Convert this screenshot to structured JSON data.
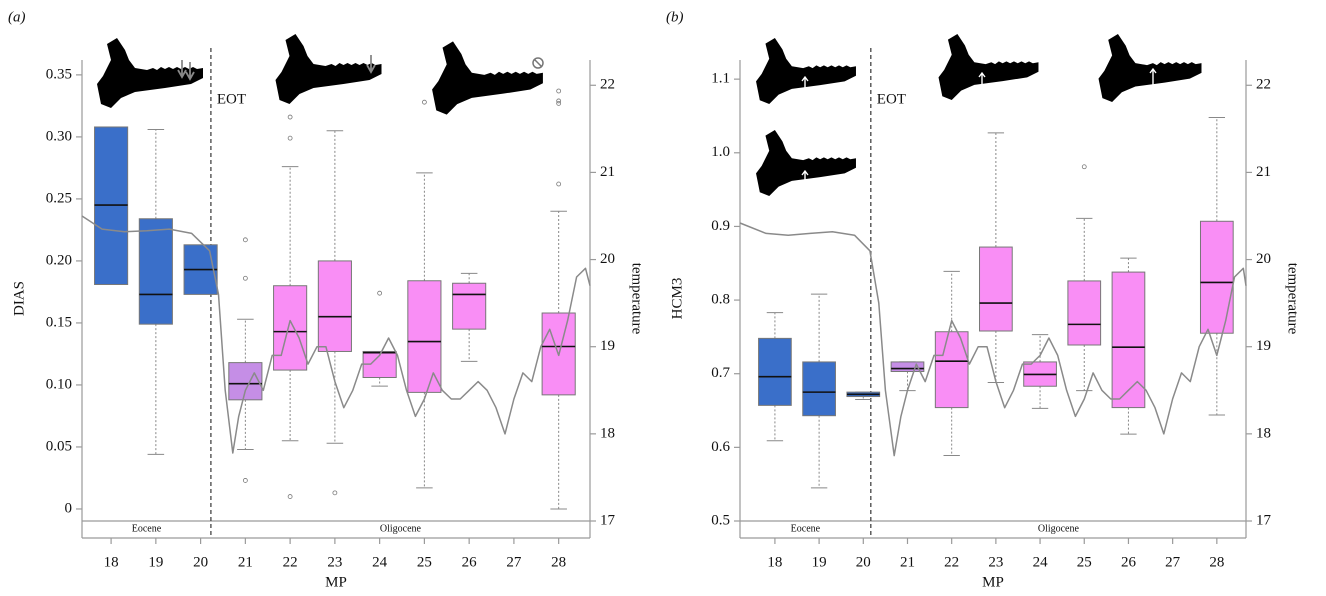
{
  "chart_data": [
    {
      "type": "box",
      "panel_label": "(a)",
      "y_label": "DIAS",
      "y2_label": "temperature",
      "x_label": "MP",
      "eot": {
        "label": "EOT",
        "x": 20.23
      },
      "epochs": [
        "Eocene",
        "Oligocene"
      ],
      "x": [
        18,
        19,
        20,
        21,
        22,
        23,
        24,
        25,
        26,
        27,
        28
      ],
      "xlim": [
        17.35,
        28.7
      ],
      "xticks": [
        18,
        19,
        20,
        21,
        22,
        23,
        24,
        25,
        26,
        27,
        28
      ],
      "ylim": [
        -0.0097,
        0.362
      ],
      "yticks": [
        0,
        0.05,
        {
          "value": 0.1,
          "label": "0.10"
        },
        0.15,
        {
          "value": 0.2,
          "label": "0.20"
        },
        0.25,
        {
          "value": 0.3,
          "label": "0.30"
        },
        0.35
      ],
      "y2lim": [
        17,
        22.29
      ],
      "y2ticks": [
        17,
        18,
        19,
        20,
        21,
        22
      ],
      "boxes": {
        "lows": [
          null,
          0.044,
          null,
          0.048,
          0.055,
          0.053,
          0.099,
          0.017,
          0.119,
          null,
          0.0
        ],
        "q1": [
          0.181,
          0.149,
          0.173,
          0.088,
          0.112,
          0.127,
          0.106,
          0.094,
          0.145,
          null,
          0.092
        ],
        "medians": [
          0.245,
          0.173,
          0.193,
          0.101,
          0.143,
          0.155,
          0.126,
          0.135,
          0.173,
          null,
          0.131
        ],
        "q3": [
          0.308,
          0.234,
          0.213,
          0.118,
          0.18,
          0.2,
          0.127,
          0.184,
          0.182,
          null,
          0.158
        ],
        "highs": [
          null,
          0.306,
          null,
          0.153,
          0.276,
          0.305,
          0.127,
          0.271,
          0.19,
          null,
          0.24
        ],
        "colors": [
          "#3a6fc9",
          "#3a6fc9",
          "#3a6fc9",
          "#c58ee6",
          "#f98ef5",
          "#f98ef5",
          "#f98ef5",
          "#f98ef5",
          "#f98ef5",
          null,
          "#f98ef5"
        ]
      },
      "outliers": {
        "x": [
          21,
          21,
          21,
          22,
          22,
          22,
          23,
          24,
          25,
          28,
          28,
          28,
          28
        ],
        "values": [
          0.217,
          0.186,
          0.023,
          0.316,
          0.299,
          0.01,
          0.013,
          0.174,
          0.328,
          0.337,
          0.329,
          0.327,
          0.262
        ]
      },
      "temperature_curve": {
        "axis": "y2",
        "color": "#8a8a8a",
        "x": [
          17.35,
          17.8,
          18.3,
          18.8,
          19.3,
          19.8,
          20.2,
          20.4,
          20.55,
          20.72,
          20.85,
          21.0,
          21.2,
          21.4,
          21.6,
          21.8,
          22.0,
          22.2,
          22.4,
          22.6,
          22.8,
          23.0,
          23.2,
          23.4,
          23.6,
          23.8,
          24.0,
          24.2,
          24.4,
          24.6,
          24.8,
          25.0,
          25.2,
          25.4,
          25.6,
          25.8,
          26.0,
          26.2,
          26.4,
          26.6,
          26.8,
          27.0,
          27.2,
          27.4,
          27.6,
          27.8,
          28.0,
          28.2,
          28.4,
          28.6,
          28.7
        ],
        "values": [
          20.5,
          20.35,
          20.32,
          20.33,
          20.35,
          20.3,
          20.1,
          19.6,
          18.5,
          17.78,
          18.2,
          18.5,
          18.7,
          18.5,
          18.9,
          18.9,
          19.3,
          19.1,
          18.8,
          19.0,
          19.0,
          18.6,
          18.3,
          18.5,
          18.8,
          18.8,
          18.9,
          19.1,
          18.9,
          18.5,
          18.2,
          18.4,
          18.7,
          18.5,
          18.4,
          18.4,
          18.5,
          18.6,
          18.5,
          18.3,
          18.0,
          18.4,
          18.7,
          18.6,
          19.0,
          19.2,
          18.9,
          19.3,
          19.8,
          19.9,
          19.7
        ]
      }
    },
    {
      "type": "box",
      "panel_label": "(b)",
      "y_label": "HCM3",
      "y2_label": "temperature",
      "x_label": "MP",
      "eot": {
        "label": "EOT",
        "x": 20.17
      },
      "epochs": [
        "Eocene",
        "Oligocene"
      ],
      "x": [
        18,
        19,
        20,
        21,
        22,
        23,
        24,
        25,
        26,
        27,
        28
      ],
      "xlim": [
        17.21,
        28.66
      ],
      "xticks": [
        18,
        19,
        20,
        21,
        22,
        23,
        24,
        25,
        26,
        27,
        28
      ],
      "ylim": [
        0.5,
        1.126
      ],
      "yticks": [
        0.5,
        0.6,
        0.7,
        0.8,
        0.9,
        {
          "value": 1.0,
          "label": "1.0"
        },
        1.1
      ],
      "y2lim": [
        17,
        22.29
      ],
      "y2ticks": [
        17,
        18,
        19,
        20,
        21,
        22
      ],
      "boxes": {
        "lows": [
          0.609,
          0.545,
          0.665,
          0.677,
          0.589,
          0.688,
          0.653,
          0.677,
          0.618,
          null,
          0.644
        ],
        "q1": [
          0.657,
          0.643,
          0.669,
          0.703,
          0.654,
          0.758,
          0.683,
          0.739,
          0.654,
          null,
          0.755
        ],
        "medians": [
          0.696,
          0.675,
          0.672,
          0.707,
          0.717,
          0.796,
          0.699,
          0.767,
          0.736,
          null,
          0.824
        ],
        "q3": [
          0.748,
          0.716,
          0.675,
          0.716,
          0.757,
          0.872,
          0.716,
          0.826,
          0.838,
          null,
          0.907
        ],
        "highs": [
          0.783,
          0.808,
          0.675,
          0.716,
          0.839,
          1.027,
          0.753,
          0.911,
          0.857,
          null,
          1.048
        ],
        "colors": [
          "#3a6fc9",
          "#3a6fc9",
          "#3a6fc9",
          "#c58ee6",
          "#f98ef5",
          "#f98ef5",
          "#f98ef5",
          "#f98ef5",
          "#f98ef5",
          null,
          "#f98ef5"
        ]
      },
      "outliers": {
        "x": [
          25
        ],
        "values": [
          0.981
        ]
      },
      "temperature_curve": {
        "axis": "y2",
        "color": "#8a8a8a",
        "x": [
          17.21,
          17.8,
          18.3,
          18.8,
          19.3,
          19.8,
          20.15,
          20.35,
          20.5,
          20.7,
          20.85,
          21.0,
          21.2,
          21.4,
          21.6,
          21.8,
          22.0,
          22.2,
          22.4,
          22.6,
          22.8,
          23.0,
          23.2,
          23.4,
          23.6,
          23.8,
          24.0,
          24.2,
          24.4,
          24.6,
          24.8,
          25.0,
          25.2,
          25.4,
          25.6,
          25.8,
          26.0,
          26.2,
          26.4,
          26.6,
          26.8,
          27.0,
          27.2,
          27.4,
          27.6,
          27.8,
          28.0,
          28.2,
          28.4,
          28.6,
          28.66
        ],
        "values": [
          20.42,
          20.3,
          20.28,
          20.3,
          20.32,
          20.28,
          20.1,
          19.5,
          18.5,
          17.75,
          18.2,
          18.5,
          18.8,
          18.6,
          18.9,
          18.9,
          19.3,
          19.1,
          18.8,
          19.0,
          19.0,
          18.6,
          18.3,
          18.5,
          18.8,
          18.8,
          18.9,
          19.1,
          18.9,
          18.5,
          18.2,
          18.4,
          18.7,
          18.5,
          18.4,
          18.4,
          18.5,
          18.6,
          18.5,
          18.3,
          18.0,
          18.4,
          18.7,
          18.6,
          19.0,
          19.2,
          18.9,
          19.3,
          19.8,
          19.9,
          19.7
        ]
      }
    }
  ]
}
